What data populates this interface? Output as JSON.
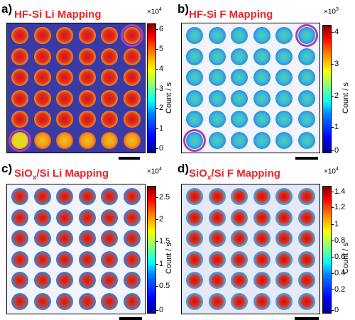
{
  "panels": [
    {
      "letter": "a)",
      "title": "HF-Si Li Mapping",
      "colorbar": {
        "exponent_base": "×10",
        "exponent_power": "4",
        "label": "Count / s",
        "ticks": [
          "6",
          "5",
          "4",
          "3",
          "2",
          "1",
          "0"
        ]
      }
    },
    {
      "letter": "b)",
      "title": "HF-Si F Mapping",
      "colorbar": {
        "exponent_base": "×10",
        "exponent_power": "3",
        "label": "Count / s",
        "ticks": [
          "4",
          "3",
          "2",
          "1",
          "0"
        ]
      }
    },
    {
      "letter": "c)",
      "title_prefix": "SiO",
      "title_sub": "x",
      "title_suffix": "/Si Li Mapping",
      "colorbar": {
        "exponent_base": "×10",
        "exponent_power": "4",
        "label": "Count / s",
        "ticks": [
          "2.5",
          "2",
          "1.5",
          "1",
          "0.5",
          "0"
        ]
      }
    },
    {
      "letter": "d)",
      "title_prefix": "SiO",
      "title_sub": "x",
      "title_suffix": "/Si F Mapping",
      "colorbar": {
        "exponent_base": "×10",
        "exponent_power": "4",
        "label": "Count / s",
        "ticks": [
          "1.4",
          "1.2",
          "1",
          "0.8",
          "0.6",
          "0.4",
          "0.2",
          "0"
        ]
      }
    }
  ],
  "colors": {
    "title": "#e8262a",
    "highlight_ring": "#b23fb0"
  }
}
